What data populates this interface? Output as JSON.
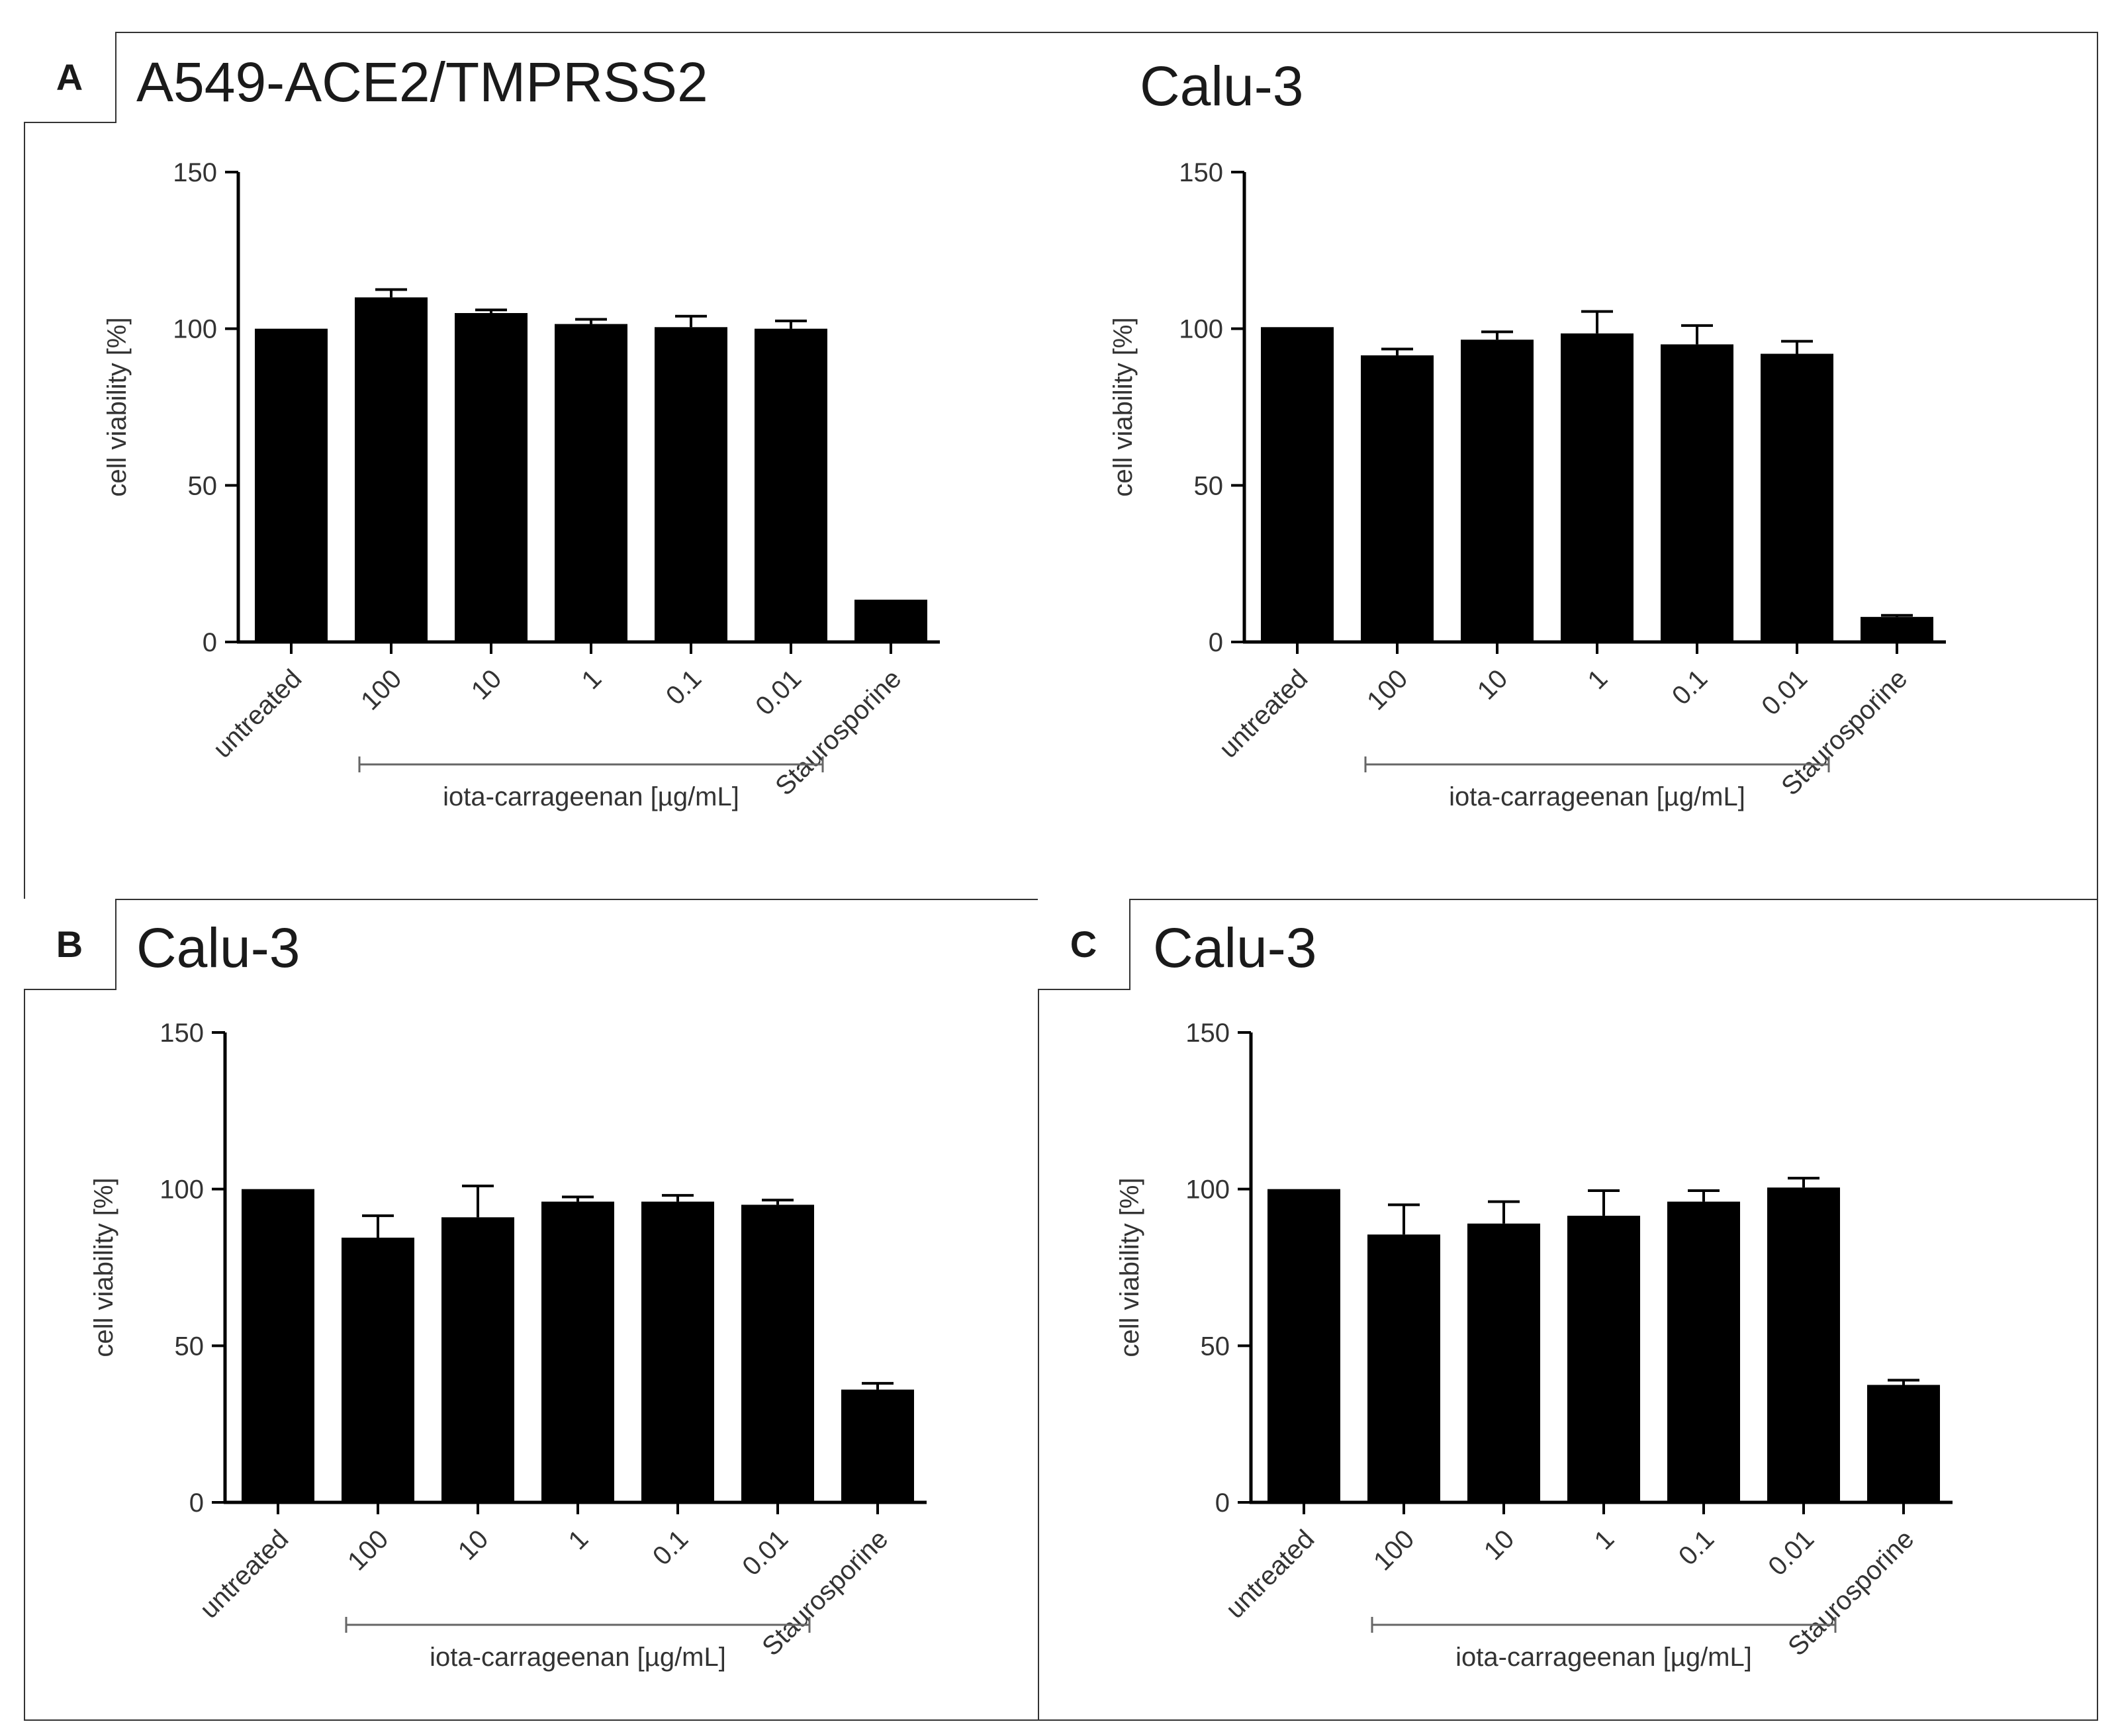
{
  "colors": {
    "bar": "#000000",
    "axis": "#000000",
    "text": "#333333",
    "frame": "#333333"
  },
  "panels": [
    {
      "letter": "A",
      "title": "A549-ACE2/TMPRSS2"
    },
    {
      "letter": "",
      "title": "Calu-3"
    },
    {
      "letter": "B",
      "title": "Calu-3"
    },
    {
      "letter": "C",
      "title": "Calu-3"
    }
  ],
  "chart_data": [
    {
      "type": "bar",
      "panel": "A",
      "title": "A549-ACE2/TMPRSS2",
      "ylabel": "cell viability [%]",
      "group_label": "iota-carrageenan [µg/mL]",
      "categories": [
        "untreated",
        "100",
        "10",
        "1",
        "0.1",
        "0.01",
        "Staurosporine"
      ],
      "values": [
        100,
        110,
        105,
        101.5,
        100.5,
        100,
        13.5
      ],
      "errors": [
        0,
        2.5,
        1,
        1.5,
        3.5,
        2.5,
        0
      ],
      "ylim": [
        0,
        150
      ],
      "yticks": [
        0,
        50,
        100,
        150
      ]
    },
    {
      "type": "bar",
      "panel": "A",
      "title": "Calu-3",
      "ylabel": "cell viability [%]",
      "group_label": "iota-carrageenan [µg/mL]",
      "categories": [
        "untreated",
        "100",
        "10",
        "1",
        "0.1",
        "0.01",
        "Staurosporine"
      ],
      "values": [
        100.5,
        91.5,
        96.5,
        98.5,
        95,
        92,
        8
      ],
      "errors": [
        0,
        2,
        2.5,
        7,
        6,
        4,
        0.5
      ],
      "ylim": [
        0,
        150
      ],
      "yticks": [
        0,
        50,
        100,
        150
      ]
    },
    {
      "type": "bar",
      "panel": "B",
      "title": "Calu-3",
      "ylabel": "cell viability [%]",
      "group_label": "iota-carrageenan [µg/mL]",
      "categories": [
        "untreated",
        "100",
        "10",
        "1",
        "0.1",
        "0.01",
        "Staurosporine"
      ],
      "values": [
        100,
        84.5,
        91,
        96,
        96,
        95,
        36
      ],
      "errors": [
        0,
        7,
        10,
        1.5,
        2,
        1.5,
        2
      ],
      "ylim": [
        0,
        150
      ],
      "yticks": [
        0,
        50,
        100,
        150
      ]
    },
    {
      "type": "bar",
      "panel": "C",
      "title": "Calu-3",
      "ylabel": "cell viability [%]",
      "group_label": "iota-carrageenan [µg/mL]",
      "categories": [
        "untreated",
        "100",
        "10",
        "1",
        "0.1",
        "0.01",
        "Staurosporine"
      ],
      "values": [
        100,
        85.5,
        89,
        91.5,
        96,
        100.5,
        37.5
      ],
      "errors": [
        0,
        9.5,
        7,
        8,
        3.5,
        3,
        1.5
      ],
      "ylim": [
        0,
        150
      ],
      "yticks": [
        0,
        50,
        100,
        150
      ]
    }
  ]
}
